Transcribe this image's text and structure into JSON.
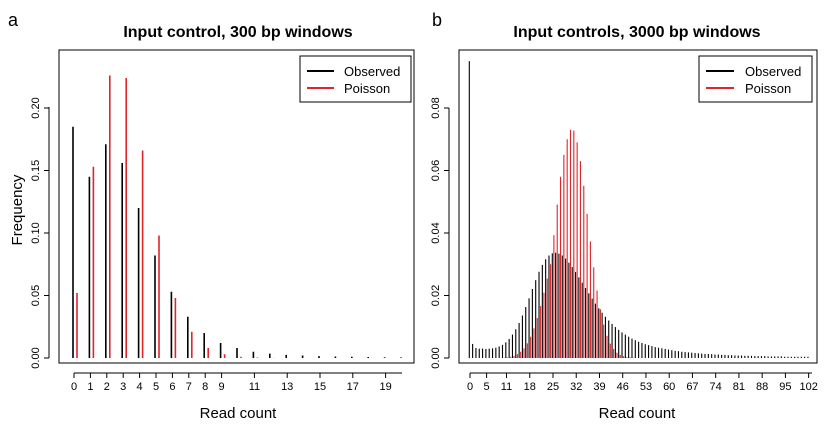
{
  "panels": [
    {
      "letter": "a",
      "title": "Input control, 300 bp windows",
      "xlabel": "Read count",
      "ylabel": "Frequency",
      "legend": [
        {
          "label": "Observed"
        },
        {
          "label": "Poisson"
        }
      ],
      "xticks": [
        "0",
        "1",
        "2",
        "3",
        "4",
        "5",
        "6",
        "7",
        "8",
        "9",
        "11",
        "13",
        "15",
        "17",
        "19"
      ],
      "yticks": [
        "0.00",
        "0.05",
        "0.10",
        "0.15",
        "0.20"
      ]
    },
    {
      "letter": "b",
      "title": "Input controls, 3000 bp windows",
      "xlabel": "Read count",
      "ylabel": "",
      "legend": [
        {
          "label": "Observed"
        },
        {
          "label": "Poisson"
        }
      ],
      "xticks": [
        "0",
        "5",
        "11",
        "18",
        "25",
        "32",
        "39",
        "46",
        "53",
        "60",
        "67",
        "74",
        "81",
        "88",
        "95",
        "102"
      ],
      "yticks": [
        "0.00",
        "0.02",
        "0.04",
        "0.06",
        "0.08"
      ]
    }
  ],
  "colors": {
    "observed": "#000000",
    "poisson": "#e0242a"
  },
  "chart_data": [
    {
      "type": "bar",
      "title": "Input control, 300 bp windows",
      "xlabel": "Read count",
      "ylabel": "Frequency",
      "xlim": [
        0,
        20
      ],
      "ylim": [
        0,
        0.23
      ],
      "legend_position": "top-right",
      "x": [
        0,
        1,
        2,
        3,
        4,
        5,
        6,
        7,
        8,
        9,
        10,
        11,
        12,
        13,
        14,
        15,
        16,
        17,
        18,
        19,
        20
      ],
      "series": [
        {
          "name": "Observed",
          "color": "#000000",
          "values": [
            0.185,
            0.145,
            0.171,
            0.156,
            0.12,
            0.082,
            0.053,
            0.033,
            0.02,
            0.012,
            0.008,
            0.005,
            0.0035,
            0.0025,
            0.002,
            0.0015,
            0.0012,
            0.001,
            0.0008,
            0.0006,
            0.0005
          ]
        },
        {
          "name": "Poisson",
          "color": "#e0242a",
          "values": [
            0.052,
            0.153,
            0.226,
            0.224,
            0.166,
            0.098,
            0.048,
            0.021,
            0.008,
            0.003,
            0.001,
            0.0004,
            0.0001,
            0,
            0,
            0,
            0,
            0,
            0,
            0,
            0
          ]
        }
      ]
    },
    {
      "type": "bar",
      "title": "Input controls, 3000 bp windows",
      "xlabel": "Read count",
      "xlim": [
        0,
        104
      ],
      "ylim": [
        0,
        0.097
      ],
      "legend_position": "top-right",
      "series": [
        {
          "name": "Observed",
          "color": "#000000",
          "x0": 0,
          "values": [
            0.095,
            0.0045,
            0.0032,
            0.003,
            0.003,
            0.0029,
            0.003,
            0.0031,
            0.0033,
            0.0037,
            0.0042,
            0.005,
            0.0061,
            0.0075,
            0.0092,
            0.0112,
            0.0136,
            0.0163,
            0.0191,
            0.0221,
            0.0249,
            0.0276,
            0.0298,
            0.0316,
            0.0328,
            0.0335,
            0.0337,
            0.0334,
            0.0328,
            0.0318,
            0.0305,
            0.0291,
            0.0275,
            0.0258,
            0.0241,
            0.0224,
            0.0207,
            0.019,
            0.0174,
            0.0159,
            0.0145,
            0.0132,
            0.012,
            0.0109,
            0.0099,
            0.009,
            0.0082,
            0.0075,
            0.0068,
            0.0062,
            0.0057,
            0.0052,
            0.0048,
            0.0044,
            0.0041,
            0.0038,
            0.0035,
            0.0033,
            0.0031,
            0.0029,
            0.0027,
            0.0025,
            0.0023,
            0.0022,
            0.002,
            0.0019,
            0.0018,
            0.0017,
            0.0016,
            0.0015,
            0.0014,
            0.0013,
            0.0013,
            0.0012,
            0.0011,
            0.0011,
            0.001,
            0.001,
            0.0009,
            0.0009,
            0.0008,
            0.0008,
            0.0008,
            0.0007,
            0.0007,
            0.0007,
            0.0006,
            0.0006,
            0.0006,
            0.0006,
            0.0005,
            0.0005,
            0.0005,
            0.0005,
            0.0005,
            0.0004,
            0.0004,
            0.0004,
            0.0004,
            0.0004,
            0.0004,
            0.0004,
            0.0004
          ]
        },
        {
          "name": "Poisson",
          "color": "#e0242a",
          "x0": 10,
          "values": [
            0.0001,
            0.0002,
            0.0004,
            0.0007,
            0.0012,
            0.002,
            0.0031,
            0.0047,
            0.0068,
            0.0095,
            0.0128,
            0.0166,
            0.0209,
            0.0254,
            0.03,
            0.0393,
            0.0491,
            0.058,
            0.065,
            0.07,
            0.073,
            0.0728,
            0.069,
            0.063,
            0.0551,
            0.0461,
            0.0373,
            0.029,
            0.0216,
            0.0156,
            0.0107,
            0.0071,
            0.0046,
            0.0029,
            0.0017,
            0.001,
            0.0006,
            0.0003,
            0.0002,
            0.0001
          ]
        }
      ]
    }
  ]
}
